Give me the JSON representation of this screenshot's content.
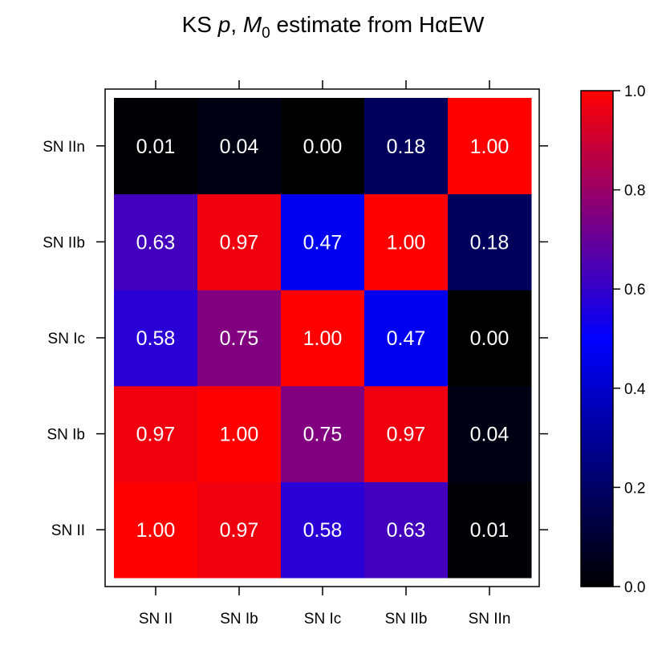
{
  "chart_data": {
    "type": "heatmap",
    "title": {
      "prefix": "KS ",
      "p": "p",
      "sep": ", ",
      "m": "M",
      "sub": "0",
      "suffix": " estimate from HαEW"
    },
    "x_categories": [
      "SN II",
      "SN Ib",
      "SN Ic",
      "SN IIb",
      "SN IIn"
    ],
    "y_categories": [
      "SN II",
      "SN Ib",
      "SN Ic",
      "SN IIb",
      "SN IIn"
    ],
    "values": [
      [
        1.0,
        0.97,
        0.58,
        0.63,
        0.01
      ],
      [
        0.97,
        1.0,
        0.75,
        0.97,
        0.04
      ],
      [
        0.58,
        0.75,
        1.0,
        0.47,
        0.0
      ],
      [
        0.63,
        0.97,
        0.47,
        1.0,
        0.18
      ],
      [
        0.01,
        0.04,
        0.0,
        0.18,
        1.0
      ]
    ],
    "value_labels": [
      [
        "1.00",
        "0.97",
        "0.58",
        "0.63",
        "0.01"
      ],
      [
        "0.97",
        "1.00",
        "0.75",
        "0.97",
        "0.04"
      ],
      [
        "0.58",
        "0.75",
        "1.00",
        "0.47",
        "0.00"
      ],
      [
        "0.63",
        "0.97",
        "0.47",
        "1.00",
        "0.18"
      ],
      [
        "0.01",
        "0.04",
        "0.00",
        "0.18",
        "1.00"
      ]
    ],
    "zlim": [
      0,
      1
    ],
    "colorbar_ticks": [
      "0.0",
      "0.2",
      "0.4",
      "0.6",
      "0.8",
      "1.0"
    ],
    "colorbar_tick_values": [
      0,
      0.2,
      0.4,
      0.6,
      0.8,
      1.0
    ],
    "color_scale": [
      "#000000",
      "#0000ff",
      "#ff0000"
    ],
    "value_text_color": "#ffffff",
    "grid": false
  }
}
